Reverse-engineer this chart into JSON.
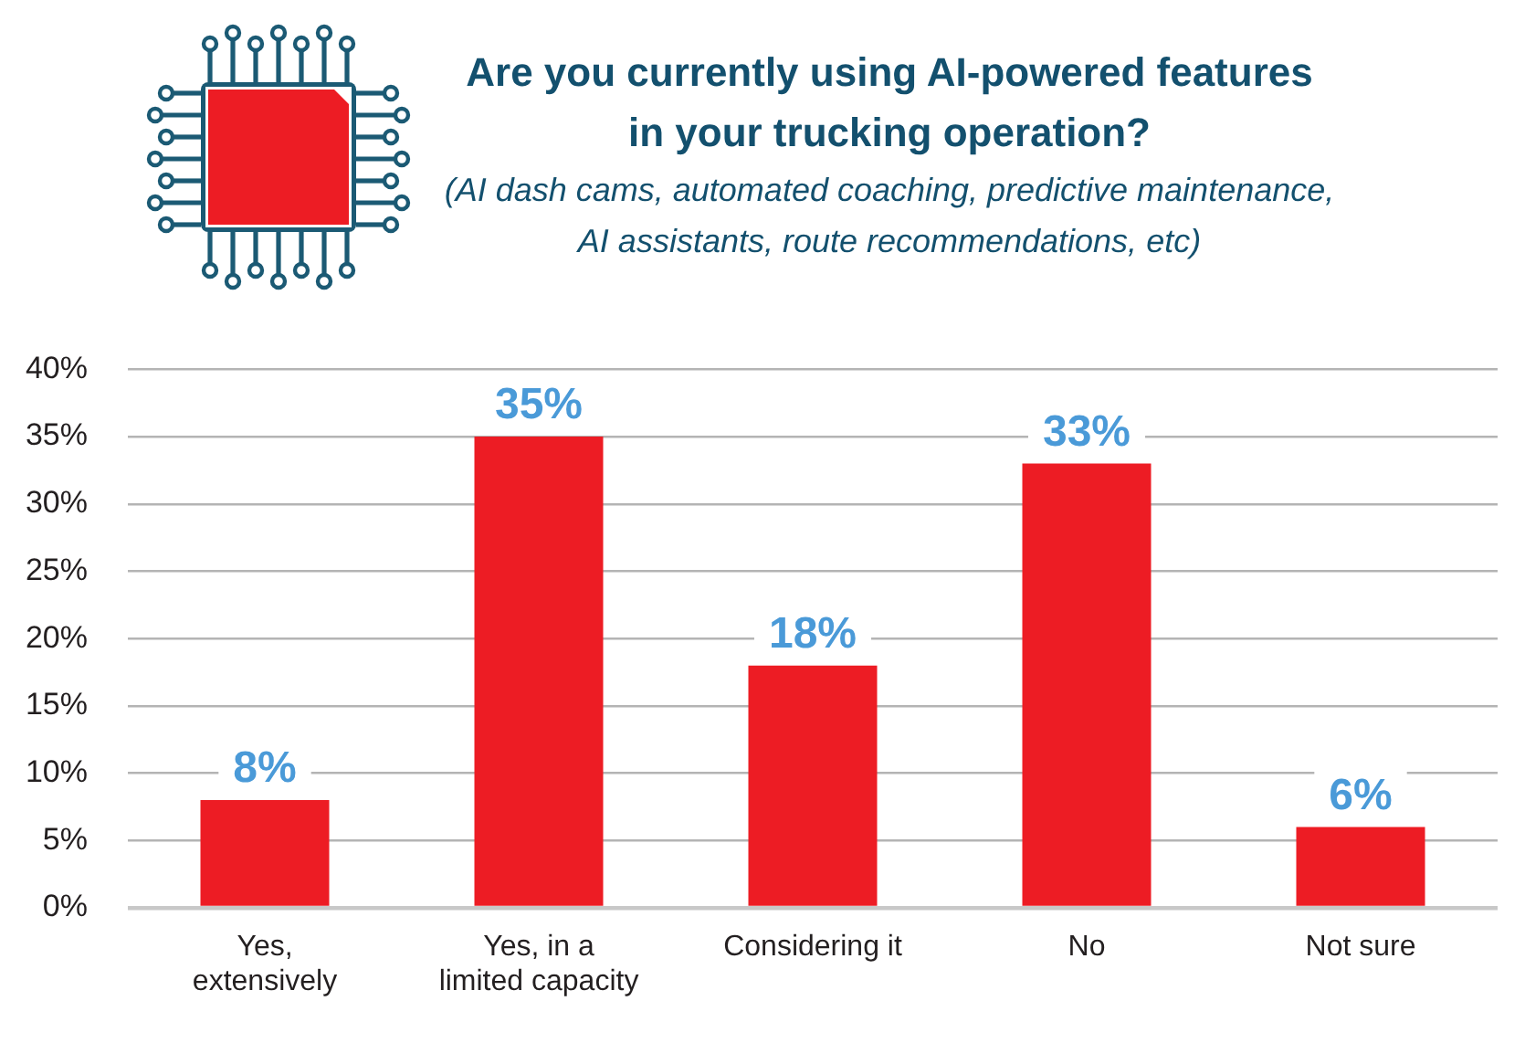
{
  "chart_data": {
    "type": "bar",
    "title": "Are you currently using AI-powered features in your trucking operation?",
    "subtitle": "(AI dash cams, automated coaching, predictive maintenance, AI assistants, route recommendations, etc)",
    "categories": [
      "Yes, extensively",
      "Yes, in a limited capacity",
      "Considering it",
      "No",
      "Not sure"
    ],
    "values": [
      8,
      35,
      18,
      33,
      6
    ],
    "value_labels": [
      "8%",
      "35%",
      "18%",
      "33%",
      "6%"
    ],
    "color": "#ed1c24",
    "ylim": [
      0,
      40
    ],
    "yticks": [
      {
        "value": 0,
        "label": "0%"
      },
      {
        "value": 5,
        "label": "5%"
      },
      {
        "value": 10,
        "label": "10%"
      },
      {
        "value": 15,
        "label": "15%"
      },
      {
        "value": 20,
        "label": "20%"
      },
      {
        "value": 25,
        "label": "25%"
      },
      {
        "value": 30,
        "label": "30%"
      },
      {
        "value": 35,
        "label": "35%"
      },
      {
        "value": 40,
        "label": "40%"
      }
    ],
    "grid": "y"
  }
}
